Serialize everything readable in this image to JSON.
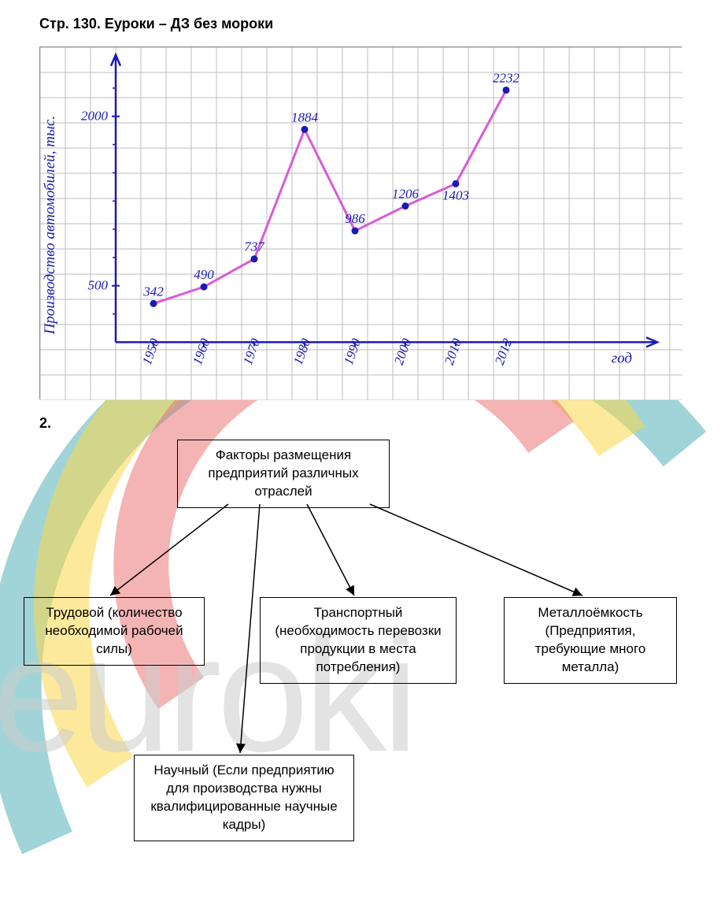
{
  "page": {
    "title": "Стр. 130. Еуроки – ДЗ без мороки"
  },
  "chart": {
    "type": "line",
    "y_label": "Производство автомобилей, тыс.",
    "x_label": "год",
    "y_ticks": [
      500,
      2000
    ],
    "x_ticks": [
      "1950",
      "1960",
      "1970",
      "1980",
      "1990",
      "2000",
      "2010",
      "2012"
    ],
    "categories": [
      "1950",
      "1960",
      "1970",
      "1980",
      "1990",
      "2000",
      "2010",
      "2012"
    ],
    "values": [
      342,
      490,
      737,
      1884,
      986,
      1206,
      1403,
      2232
    ],
    "line_color": "#d85bd8",
    "line_width": 3,
    "point_color": "#1a1ab5",
    "point_radius": 4.5,
    "label_color": "#1a1ab5",
    "grid_color": "#bdbdbd",
    "axis_color": "#1a1ab5",
    "background_color": "#ffffff",
    "grid_cell": 32,
    "handwriting_font": "cursive",
    "label_fontsize": 17,
    "axislabel_fontsize": 19
  },
  "watermark": {
    "text": "euroki",
    "color_outer": "#2da0a8",
    "color_mid": "#fcd74a",
    "color_inner": "#ea6a6a",
    "text_color": "#bfbfbf"
  },
  "diagram": {
    "section_number": "2.",
    "root": {
      "text": "Факторы размещения предприятий различных отраслей"
    },
    "children": [
      {
        "text": "Трудовой (количество необходимой рабочей силы)"
      },
      {
        "text": "Транспортный (необходимость перевозки продукции в места потребления)"
      },
      {
        "text": "Металлоёмкость (Предприятия, требующие много металла)"
      },
      {
        "text": "Научный (Если предприятию для производства нужны квалифицированные научные кадры)"
      }
    ],
    "box_border": "#000000",
    "arrow_color": "#000000",
    "font_size": 17
  }
}
